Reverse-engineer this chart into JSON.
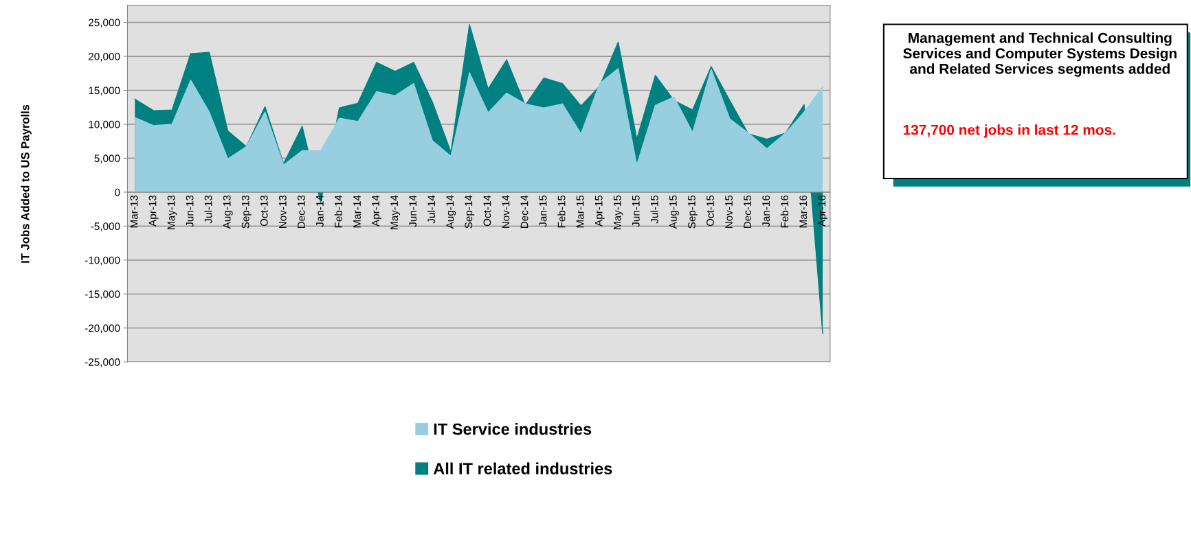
{
  "chart_data": {
    "type": "area",
    "ylabel": "IT Jobs Added to US Payrolls",
    "categories": [
      "Mar-13",
      "Apr-13",
      "May-13",
      "Jun-13",
      "Jul-13",
      "Aug-13",
      "Sep-13",
      "Oct-13",
      "Nov-13",
      "Dec-13",
      "Jan-14",
      "Feb-14",
      "Mar-14",
      "Apr-14",
      "May-14",
      "Jun-14",
      "Jul-14",
      "Aug-14",
      "Sep-14",
      "Oct-14",
      "Nov-14",
      "Dec-14",
      "Jan-15",
      "Feb-15",
      "Mar-15",
      "Apr-15",
      "May-15",
      "Jun-15",
      "Jul-15",
      "Aug-15",
      "Sep-15",
      "Oct-15",
      "Nov-15",
      "Dec-15",
      "Jan-16",
      "Feb-16",
      "Mar-16",
      "Apr-16"
    ],
    "series": [
      {
        "name": "All IT related industries",
        "color": "#008080",
        "values": [
          13700,
          12000,
          12100,
          20400,
          20600,
          9000,
          6700,
          12600,
          4200,
          9700,
          -1500,
          12400,
          13100,
          19100,
          17800,
          19100,
          13300,
          5900,
          24700,
          15200,
          19500,
          12800,
          16800,
          16000,
          12700,
          15600,
          22100,
          7800,
          17200,
          13500,
          12100,
          18500,
          13500,
          8600,
          7800,
          8700,
          12900,
          -20800
        ]
      },
      {
        "name": "IT Service industries",
        "color": "#97cfe0",
        "values": [
          11000,
          9800,
          10000,
          16500,
          11800,
          4900,
          6700,
          11800,
          4000,
          6100,
          6100,
          10900,
          10400,
          14800,
          14200,
          16000,
          7600,
          5300,
          17600,
          11700,
          14600,
          13000,
          12400,
          13000,
          8600,
          16000,
          18200,
          4000,
          12800,
          14000,
          8800,
          18100,
          10800,
          8700,
          6400,
          8700,
          11800,
          15500
        ]
      }
    ],
    "ylim": [
      -25000,
      27500
    ],
    "yticks": [
      {
        "value": -25000,
        "label": "-25,000"
      },
      {
        "value": -20000,
        "label": "-20,000"
      },
      {
        "value": -15000,
        "label": "-15,000"
      },
      {
        "value": -10000,
        "label": "-10,000"
      },
      {
        "value": -5000,
        "label": "-5,000"
      },
      0,
      {
        "value": 5000,
        "label": "5,000"
      },
      {
        "value": 10000,
        "label": "10,000"
      },
      {
        "value": 15000,
        "label": "15,000"
      },
      {
        "value": 20000,
        "label": "20,000"
      },
      {
        "value": 25000,
        "label": "25,000"
      }
    ],
    "grid": "y",
    "legend": "bottom",
    "annotations": [
      "Management and Technical Consulting Services and Computer Systems Design and Related Services segments added",
      "137,700 net jobs in last 12 mos."
    ]
  }
}
